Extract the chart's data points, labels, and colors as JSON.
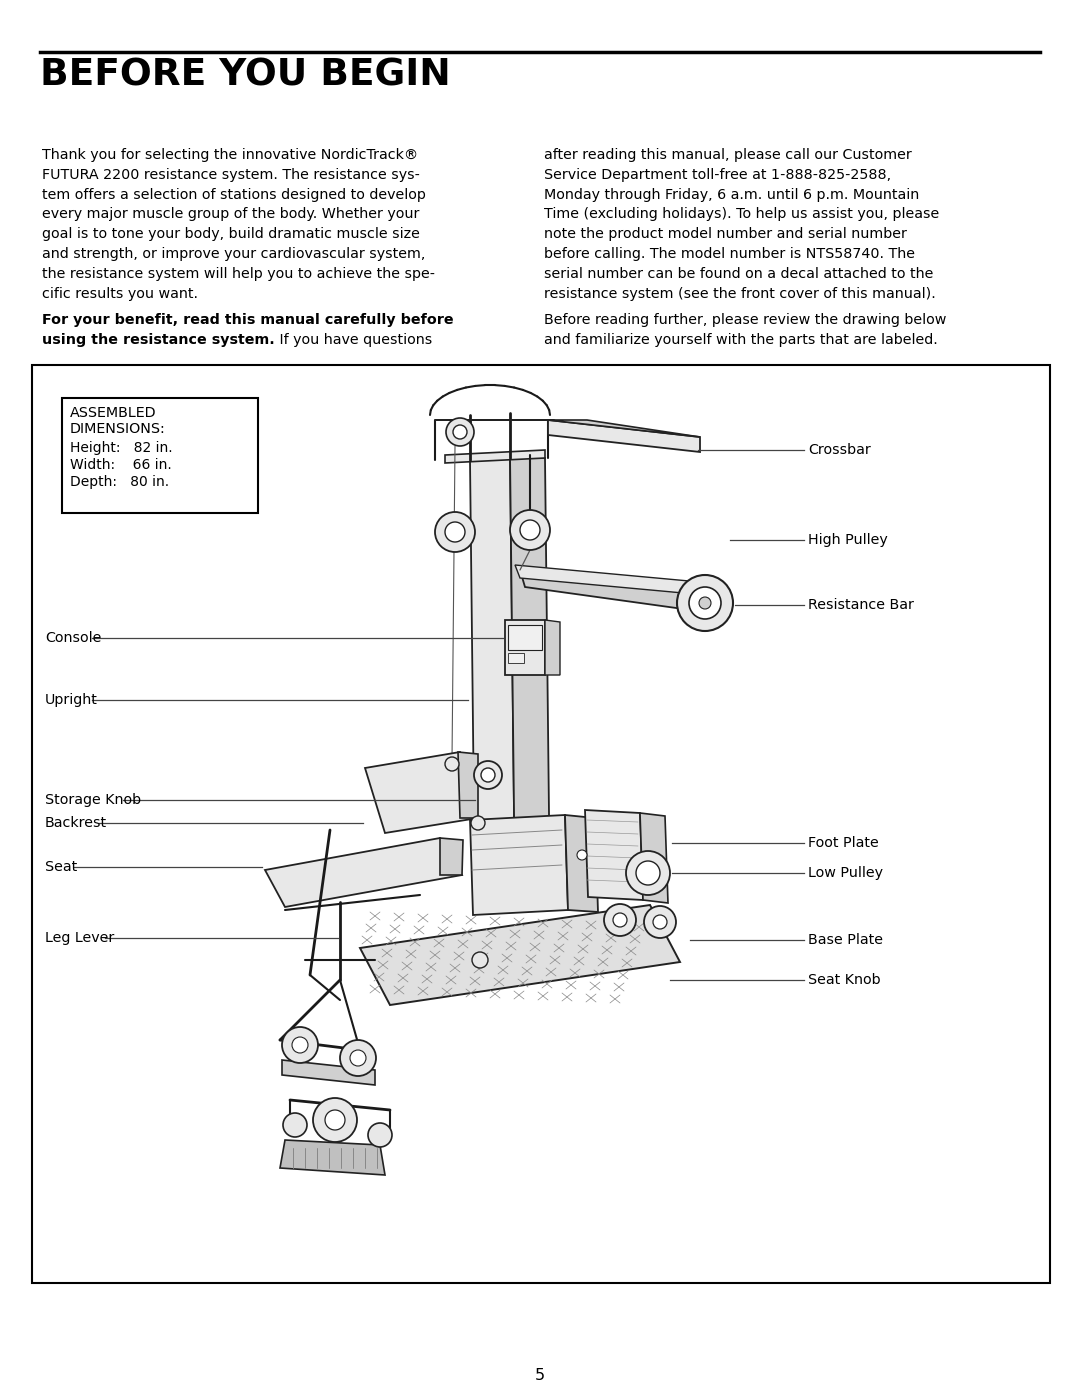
{
  "title": "BEFORE YOU BEGIN",
  "page_number": "5",
  "bg_color": "#ffffff",
  "left_col_text": [
    "Thank you for selecting the innovative NordicTrack®",
    "FUTURA 2200 resistance system. The resistance sys-",
    "tem offers a selection of stations designed to develop",
    "every major muscle group of the body. Whether your",
    "goal is to tone your body, build dramatic muscle size",
    "and strength, or improve your cardiovascular system,",
    "the resistance system will help you to achieve the spe-",
    "cific results you want."
  ],
  "right_col_text": [
    "after reading this manual, please call our Customer",
    "Service Department toll-free at 1-888-825-2588,",
    "Monday through Friday, 6 a.m. until 6 p.m. Mountain",
    "Time (excluding holidays). To help us assist you, please",
    "note the product model number and serial number",
    "before calling. The model number is NTS58740. The",
    "serial number can be found on a decal attached to the",
    "resistance system (see the front cover of this manual)."
  ],
  "dim_title1": "ASSEMBLED",
  "dim_title2": "DIMENSIONS:",
  "dim_height": "Height:   82 in.",
  "dim_width": "Width:    66 in.",
  "dim_depth": "Depth:   80 in.",
  "left_labels": [
    "Console",
    "Upright",
    "Storage Knob",
    "Backrest",
    "Seat",
    "Leg Lever"
  ],
  "right_labels": [
    "Crossbar",
    "High Pulley",
    "Resistance Bar",
    "Foot Plate",
    "Low Pulley",
    "Base Plate",
    "Seat Knob"
  ]
}
